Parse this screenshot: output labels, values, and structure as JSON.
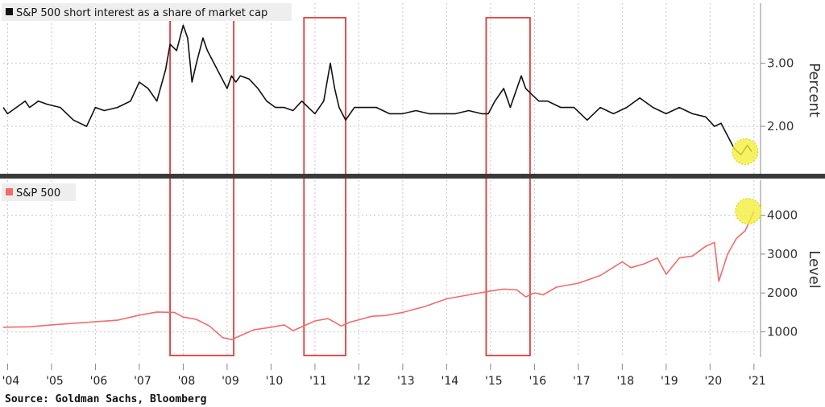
{
  "chart_data": [
    {
      "type": "line",
      "legend": "S&P 500 short interest as a share of market cap",
      "ylabel": "Percent",
      "yticks": [
        2.0,
        3.0
      ],
      "ytick_labels": [
        "2.00",
        "3.00"
      ],
      "ylim": [
        1.25,
        3.95
      ],
      "color": "#111111",
      "legend_placement": "top-left",
      "grid": true,
      "series": [
        {
          "x": [
            2003.9,
            2004.0,
            2004.2,
            2004.4,
            2004.5,
            2004.7,
            2004.9,
            2005.2,
            2005.5,
            2005.8,
            2006.0,
            2006.2,
            2006.5,
            2006.8,
            2007.0,
            2007.2,
            2007.4,
            2007.6,
            2007.7,
            2007.85,
            2008.0,
            2008.1,
            2008.2,
            2008.3,
            2008.45,
            2008.55,
            2008.7,
            2008.85,
            2009.0,
            2009.1,
            2009.2,
            2009.3,
            2009.5,
            2009.7,
            2009.9,
            2010.1,
            2010.3,
            2010.5,
            2010.7,
            2010.85,
            2011.0,
            2011.2,
            2011.35,
            2011.45,
            2011.55,
            2011.7,
            2011.9,
            2012.1,
            2012.4,
            2012.7,
            2013.0,
            2013.3,
            2013.6,
            2013.9,
            2014.2,
            2014.5,
            2014.8,
            2014.95,
            2015.1,
            2015.3,
            2015.45,
            2015.55,
            2015.7,
            2015.8,
            2015.95,
            2016.1,
            2016.3,
            2016.6,
            2016.9,
            2017.2,
            2017.5,
            2017.8,
            2018.1,
            2018.4,
            2018.7,
            2019.0,
            2019.3,
            2019.6,
            2019.9,
            2020.1,
            2020.25,
            2020.4,
            2020.55,
            2020.7,
            2020.85,
            2020.95
          ],
          "values": [
            2.3,
            2.2,
            2.3,
            2.4,
            2.3,
            2.4,
            2.35,
            2.3,
            2.1,
            2.0,
            2.3,
            2.25,
            2.3,
            2.4,
            2.7,
            2.6,
            2.4,
            2.9,
            3.3,
            3.2,
            3.6,
            3.4,
            2.7,
            3.0,
            3.4,
            3.2,
            3.0,
            2.8,
            2.6,
            2.8,
            2.7,
            2.8,
            2.75,
            2.6,
            2.4,
            2.3,
            2.3,
            2.25,
            2.4,
            2.3,
            2.2,
            2.4,
            3.0,
            2.6,
            2.3,
            2.1,
            2.3,
            2.3,
            2.3,
            2.2,
            2.2,
            2.25,
            2.2,
            2.2,
            2.2,
            2.25,
            2.2,
            2.2,
            2.4,
            2.6,
            2.3,
            2.5,
            2.8,
            2.6,
            2.5,
            2.4,
            2.4,
            2.3,
            2.3,
            2.1,
            2.3,
            2.2,
            2.3,
            2.45,
            2.3,
            2.2,
            2.3,
            2.2,
            2.15,
            2.0,
            2.05,
            1.85,
            1.65,
            1.55,
            1.7,
            1.6
          ]
        }
      ]
    },
    {
      "type": "line",
      "legend": "S&P 500",
      "ylabel": "Level",
      "yticks": [
        1000,
        2000,
        3000,
        4000
      ],
      "ytick_labels": [
        "1000",
        "2000",
        "3000",
        "4000"
      ],
      "ylim": [
        350,
        4900
      ],
      "color": "#f26b6b",
      "legend_placement": "top-left",
      "grid": true,
      "series": [
        {
          "x": [
            2003.9,
            2004.5,
            2005.0,
            2005.5,
            2006.0,
            2006.5,
            2007.0,
            2007.4,
            2007.8,
            2008.0,
            2008.3,
            2008.6,
            2008.9,
            2009.1,
            2009.3,
            2009.6,
            2010.0,
            2010.3,
            2010.5,
            2010.8,
            2011.0,
            2011.3,
            2011.6,
            2011.8,
            2012.0,
            2012.3,
            2012.6,
            2013.0,
            2013.5,
            2014.0,
            2014.5,
            2015.0,
            2015.3,
            2015.6,
            2015.8,
            2016.0,
            2016.2,
            2016.5,
            2017.0,
            2017.5,
            2018.0,
            2018.2,
            2018.5,
            2018.8,
            2019.0,
            2019.3,
            2019.6,
            2019.9,
            2020.1,
            2020.2,
            2020.4,
            2020.6,
            2020.8,
            2021.0
          ],
          "values": [
            1120,
            1130,
            1180,
            1220,
            1260,
            1300,
            1430,
            1510,
            1500,
            1380,
            1320,
            1150,
            850,
            800,
            900,
            1050,
            1120,
            1180,
            1030,
            1180,
            1280,
            1340,
            1150,
            1250,
            1310,
            1400,
            1420,
            1500,
            1650,
            1850,
            1950,
            2050,
            2100,
            2080,
            1900,
            2000,
            1950,
            2150,
            2250,
            2450,
            2800,
            2650,
            2750,
            2900,
            2480,
            2900,
            2950,
            3200,
            3300,
            2300,
            3000,
            3400,
            3600,
            4100
          ]
        }
      ]
    }
  ],
  "x_axis": {
    "ticks": [
      2004,
      2005,
      2006,
      2007,
      2008,
      2009,
      2010,
      2011,
      2012,
      2013,
      2014,
      2015,
      2016,
      2017,
      2018,
      2019,
      2020,
      2021
    ],
    "labels": [
      "'04",
      "'05",
      "'06",
      "'07",
      "'08",
      "'09",
      "'10",
      "'11",
      "'12",
      "'13",
      "'14",
      "'15",
      "'16",
      "'17",
      "'18",
      "'19",
      "'20",
      "'21"
    ],
    "range": [
      2003.9,
      2021.15
    ]
  },
  "highlight_boxes": [
    {
      "x0": 2007.7,
      "x1": 2009.15,
      "color": "#e03c3c"
    },
    {
      "x0": 2010.75,
      "x1": 2011.7,
      "color": "#e03c3c"
    },
    {
      "x0": 2014.9,
      "x1": 2015.9,
      "color": "#e03c3c"
    }
  ],
  "circle_markers": [
    {
      "x": 2020.8,
      "panel": 0,
      "value": 1.6,
      "color": "#f3ef3c"
    },
    {
      "x": 2020.87,
      "panel": 1,
      "value": 4100,
      "color": "#f3ef3c"
    }
  ],
  "source": "Source: Goldman Sachs, Bloomberg"
}
